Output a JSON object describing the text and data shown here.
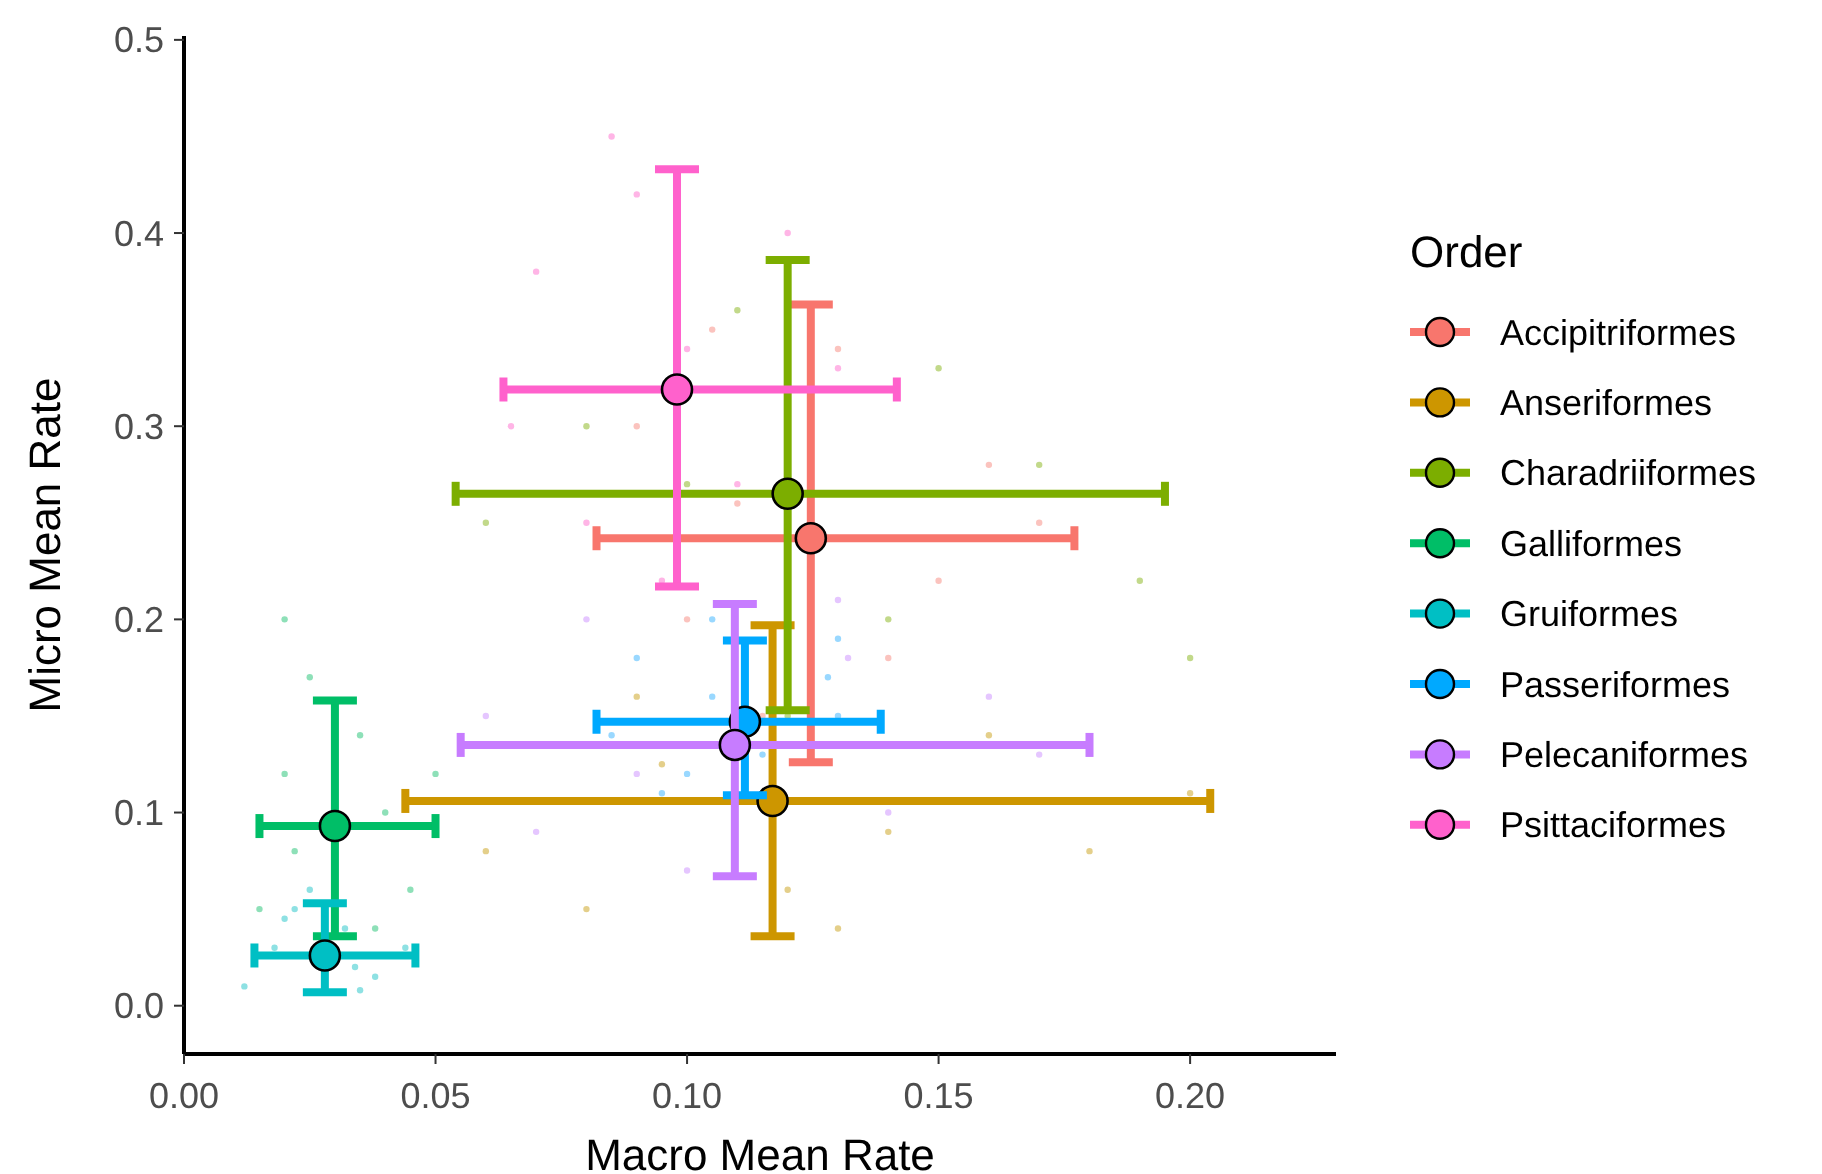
{
  "chart_data": {
    "type": "scatter",
    "xlabel": "Macro Mean Rate",
    "ylabel": "Micro Mean Rate",
    "legend_title": "Order",
    "legend": "right",
    "grid": false,
    "marker": "circle",
    "xlim": [
      0,
      0.229
    ],
    "ylim": [
      -0.025,
      0.502
    ],
    "xticks": [
      {
        "value": 0,
        "label": "0.00"
      },
      {
        "value": 0.05,
        "label": "0.05"
      },
      {
        "value": 0.1,
        "label": "0.10"
      },
      {
        "value": 0.15,
        "label": "0.15"
      },
      {
        "value": 0.2,
        "label": "0.20"
      }
    ],
    "yticks": [
      {
        "value": 0,
        "label": "0.0"
      },
      {
        "value": 0.1,
        "label": "0.1"
      },
      {
        "value": 0.2,
        "label": "0.2"
      },
      {
        "value": 0.3,
        "label": "0.3"
      },
      {
        "value": 0.4,
        "label": "0.4"
      },
      {
        "value": 0.5,
        "label": "0.5"
      }
    ],
    "series": [
      {
        "color": "#fbc3be",
        "x": [
          0.09,
          0.1,
          0.11,
          0.13,
          0.15,
          0.16,
          0.115,
          0.14,
          0.17,
          0.105
        ],
        "values": [
          0.3,
          0.2,
          0.26,
          0.34,
          0.22,
          0.28,
          0.15,
          0.18,
          0.25,
          0.35
        ]
      },
      {
        "color": "#e4cf8a",
        "x": [
          0.06,
          0.08,
          0.095,
          0.12,
          0.14,
          0.16,
          0.18,
          0.09,
          0.13,
          0.2
        ],
        "values": [
          0.08,
          0.05,
          0.125,
          0.06,
          0.09,
          0.14,
          0.08,
          0.16,
          0.04,
          0.11
        ]
      },
      {
        "color": "#c2d98a",
        "x": [
          0.06,
          0.08,
          0.11,
          0.14,
          0.17,
          0.19,
          0.12,
          0.15,
          0.2,
          0.1
        ],
        "values": [
          0.25,
          0.3,
          0.36,
          0.2,
          0.28,
          0.22,
          0.15,
          0.33,
          0.18,
          0.27
        ]
      },
      {
        "color": "#8ee0b8",
        "x": [
          0.015,
          0.02,
          0.025,
          0.022,
          0.035,
          0.04,
          0.045,
          0.02,
          0.038,
          0.05
        ],
        "values": [
          0.05,
          0.12,
          0.17,
          0.08,
          0.14,
          0.1,
          0.06,
          0.2,
          0.04,
          0.12
        ]
      },
      {
        "color": "#8ee1e3",
        "x": [
          0.012,
          0.018,
          0.022,
          0.034,
          0.032,
          0.038,
          0.044,
          0.025,
          0.035,
          0.02
        ],
        "values": [
          0.01,
          0.03,
          0.05,
          0.02,
          0.04,
          0.015,
          0.03,
          0.06,
          0.008,
          0.045
        ]
      },
      {
        "color": "#99d8ff",
        "x": [
          0.085,
          0.09,
          0.1,
          0.105,
          0.105,
          0.115,
          0.128,
          0.13,
          0.095,
          0.13
        ],
        "values": [
          0.14,
          0.18,
          0.12,
          0.16,
          0.2,
          0.13,
          0.17,
          0.15,
          0.11,
          0.19
        ]
      },
      {
        "color": "#e5c6ff",
        "x": [
          0.06,
          0.07,
          0.08,
          0.09,
          0.132,
          0.14,
          0.16,
          0.17,
          0.1,
          0.13
        ],
        "values": [
          0.15,
          0.09,
          0.2,
          0.12,
          0.18,
          0.1,
          0.16,
          0.13,
          0.07,
          0.21
        ]
      },
      {
        "color": "#ffb5e6",
        "x": [
          0.065,
          0.07,
          0.08,
          0.09,
          0.1,
          0.11,
          0.12,
          0.085,
          0.095,
          0.13
        ],
        "values": [
          0.3,
          0.38,
          0.25,
          0.42,
          0.34,
          0.27,
          0.4,
          0.45,
          0.22,
          0.33
        ]
      },
      {
        "name": "Accipitriformes",
        "color": "#F8766D",
        "x": [
          0.1246
        ],
        "values": [
          0.242
        ],
        "errors": [
          [
            0.126,
            0.363
          ]
        ],
        "xerrors": [
          [
            0.082,
            0.177
          ]
        ]
      },
      {
        "name": "Anseriformes",
        "color": "#CD9600",
        "x": [
          0.117
        ],
        "values": [
          0.106
        ],
        "errors": [
          [
            0.036,
            0.197
          ]
        ],
        "xerrors": [
          [
            0.044,
            0.204
          ]
        ]
      },
      {
        "name": "Charadriiformes",
        "color": "#7CAE00",
        "x": [
          0.12
        ],
        "values": [
          0.265
        ],
        "errors": [
          [
            0.153,
            0.386
          ]
        ],
        "xerrors": [
          [
            0.054,
            0.195
          ]
        ]
      },
      {
        "name": "Galliformes",
        "color": "#00BE67",
        "x": [
          0.03
        ],
        "values": [
          0.093
        ],
        "errors": [
          [
            0.036,
            0.158
          ]
        ],
        "xerrors": [
          [
            0.015,
            0.05
          ]
        ]
      },
      {
        "name": "Gruiformes",
        "color": "#00BFC4",
        "x": [
          0.028
        ],
        "values": [
          0.026
        ],
        "errors": [
          [
            0.007,
            0.053
          ]
        ],
        "xerrors": [
          [
            0.014,
            0.046
          ]
        ]
      },
      {
        "name": "Passeriformes",
        "color": "#00A9FF",
        "x": [
          0.1115
        ],
        "values": [
          0.147
        ],
        "errors": [
          [
            0.109,
            0.189
          ]
        ],
        "xerrors": [
          [
            0.082,
            0.1385
          ]
        ]
      },
      {
        "name": "Pelecaniformes",
        "color": "#C77CFF",
        "x": [
          0.1095
        ],
        "values": [
          0.135
        ],
        "errors": [
          [
            0.067,
            0.208
          ]
        ],
        "xerrors": [
          [
            0.055,
            0.18
          ]
        ]
      },
      {
        "name": "Psittaciformes",
        "color": "#FF61CC",
        "x": [
          0.098
        ],
        "values": [
          0.319
        ],
        "errors": [
          [
            0.217,
            0.433
          ]
        ],
        "xerrors": [
          [
            0.0635,
            0.1417
          ]
        ]
      }
    ]
  }
}
